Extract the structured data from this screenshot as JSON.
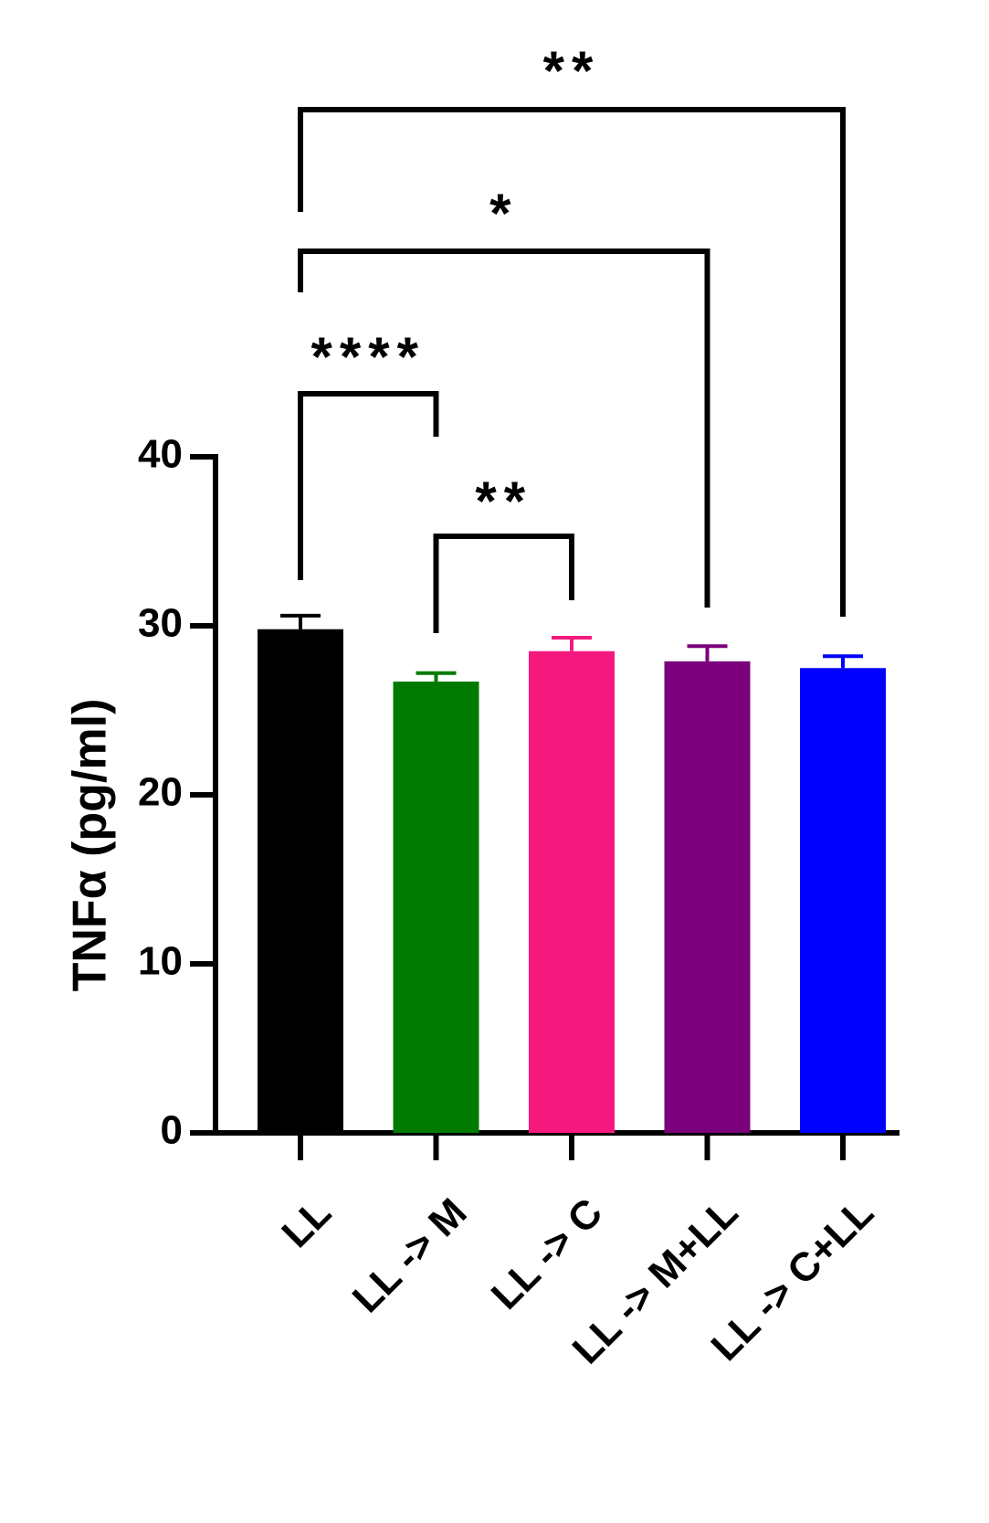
{
  "chart_data": {
    "type": "bar",
    "title": "",
    "xlabel": "",
    "ylabel": "TNFα (pg/ml)",
    "ylim": [
      0,
      40
    ],
    "yticks": [
      "0",
      "10",
      "20",
      "30",
      "40"
    ],
    "grid": false,
    "categories": [
      "LL",
      "LL -> M",
      "LL -> C",
      "LL -> M+LL",
      "LL -> C+LL"
    ],
    "values": [
      29.8,
      26.7,
      28.5,
      27.9,
      27.5
    ],
    "errors": [
      0.8,
      0.5,
      0.8,
      0.9,
      0.7
    ],
    "colors": [
      "#000000",
      "#007a00",
      "#f5197e",
      "#7b007b",
      "#0000ff"
    ],
    "comparisons": [
      {
        "from": "LL",
        "to": "LL -> M",
        "label": "****"
      },
      {
        "from": "LL -> M",
        "to": "LL -> C",
        "label": "**"
      },
      {
        "from": "LL",
        "to": "LL -> M+LL",
        "label": "*"
      },
      {
        "from": "LL",
        "to": "LL -> C+LL",
        "label": "**"
      }
    ]
  }
}
